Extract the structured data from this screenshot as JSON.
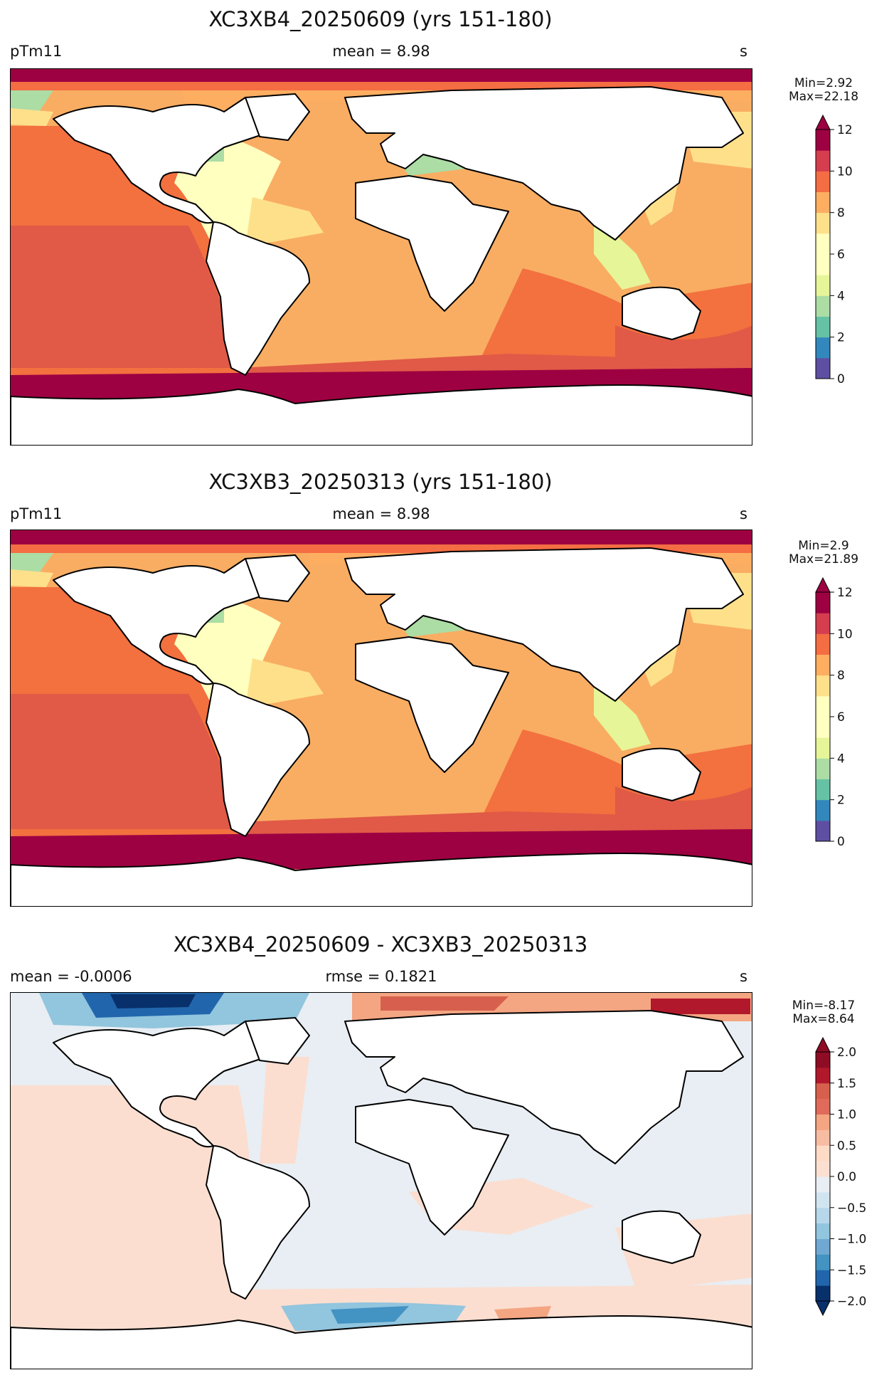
{
  "panels": [
    {
      "id": "p1",
      "title": "XC3XB4_20250609 (yrs 151-180)",
      "left_label": "pTm11",
      "center_label": "mean = 8.98",
      "right_label": "s",
      "stat_min": "Min=2.92",
      "stat_max": "Max=22.18",
      "colorbar": {
        "min": 0,
        "max": 12,
        "extend": "max",
        "ticks": [
          "0",
          "2",
          "4",
          "6",
          "8",
          "10",
          "12"
        ],
        "colors": [
          "#5e4fa2",
          "#3288bd",
          "#66c2a5",
          "#abdda4",
          "#e6f598",
          "#ffffbf",
          "#fee08b",
          "#fdae61",
          "#f46d43",
          "#d53e4f",
          "#9e0142"
        ],
        "levels": 12
      }
    },
    {
      "id": "p2",
      "title": "XC3XB3_20250313 (yrs 151-180)",
      "left_label": "pTm11",
      "center_label": "mean = 8.98",
      "right_label": "s",
      "stat_min": "Min=2.9",
      "stat_max": "Max=21.89",
      "colorbar": {
        "min": 0,
        "max": 12,
        "extend": "max",
        "ticks": [
          "0",
          "2",
          "4",
          "6",
          "8",
          "10",
          "12"
        ],
        "colors": [
          "#5e4fa2",
          "#3288bd",
          "#66c2a5",
          "#abdda4",
          "#e6f598",
          "#ffffbf",
          "#fee08b",
          "#fdae61",
          "#f46d43",
          "#d53e4f",
          "#9e0142"
        ],
        "levels": 12
      }
    },
    {
      "id": "p3",
      "title": "XC3XB4_20250609 - XC3XB3_20250313",
      "left_label": "mean = -0.0006",
      "center_label": "rmse = 0.1821",
      "right_label": "s",
      "stat_min": "Min=-8.17",
      "stat_max": "Max=8.64",
      "colorbar": {
        "min": -2,
        "max": 2,
        "extend": "both",
        "ticks": [
          "−2.0",
          "−1.5",
          "−1.0",
          "−0.5",
          "0.0",
          "0.5",
          "1.0",
          "1.5",
          "2.0"
        ],
        "colors": [
          "#08306b",
          "#2166ac",
          "#4393c3",
          "#6fa8d2",
          "#92c5de",
          "#b7d7ea",
          "#d1e5f0",
          "#e8eef3",
          "#f2f2f2",
          "#fbe0d2",
          "#fddbc7",
          "#f8bca3",
          "#f4a582",
          "#e06b5a",
          "#d6604d",
          "#b2182b",
          "#8e0d24"
        ],
        "levels": 16
      }
    }
  ]
}
